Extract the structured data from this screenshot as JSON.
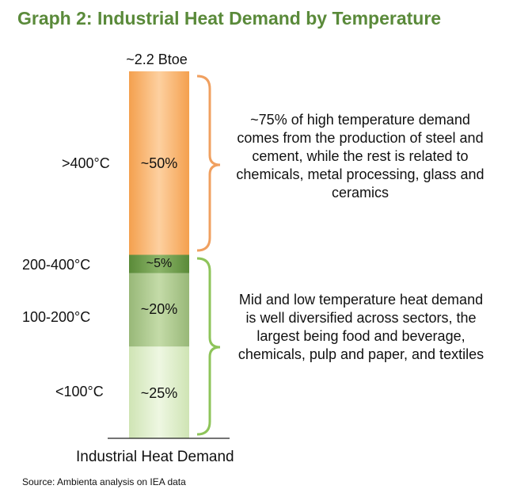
{
  "title": "Graph 2: Industrial Heat Demand by Temperature",
  "chart_data": {
    "type": "bar",
    "stacked": true,
    "total_label": "~2.2 Btoe",
    "categories": [
      "Industrial Heat Demand"
    ],
    "segments": [
      {
        "name": "<100°C",
        "value": 25,
        "label": "~25%",
        "color": "#d7e9bf"
      },
      {
        "name": "100-200°C",
        "value": 20,
        "label": "~20%",
        "color": "#a4c082"
      },
      {
        "name": "200-400°C",
        "value": 5,
        "label": "~5%",
        "color": "#5e8c3e"
      },
      {
        "name": ">400°C",
        "value": 50,
        "label": "~50%",
        "color": "#f6a85a"
      }
    ],
    "annotations": [
      {
        "text": "~75% of high temperature demand comes from the production of steel and cement, while the rest is related to chemicals, metal processing, glass and ceramics",
        "bracket_color": "#f0a060"
      },
      {
        "text": "Mid and low temperature heat demand is well diversified across sectors, the largest being food and beverage, chemicals, pulp and paper, and textiles",
        "bracket_color": "#8ec45a"
      }
    ]
  },
  "source": "Source: Ambienta analysis on IEA data"
}
